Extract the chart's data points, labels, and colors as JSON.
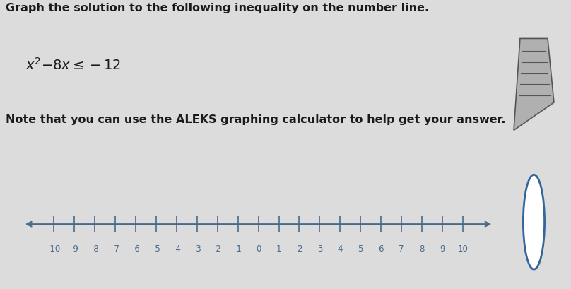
{
  "title_line1": "Graph the solution to the following inequality on the number line.",
  "note_line": "Note that you can use the ALEKS graphing calculator to help get your answer.",
  "bg_color": "#dcdcdc",
  "text_color": "#1a1a1a",
  "axis_color": "#4a6a8a",
  "box_bg": "#c8c8c8",
  "right_panel_bg": "#c0c0c0",
  "title_fontsize": 11.5,
  "eq_fontsize": 13,
  "note_fontsize": 11.5,
  "tick_fontsize": 8.5
}
